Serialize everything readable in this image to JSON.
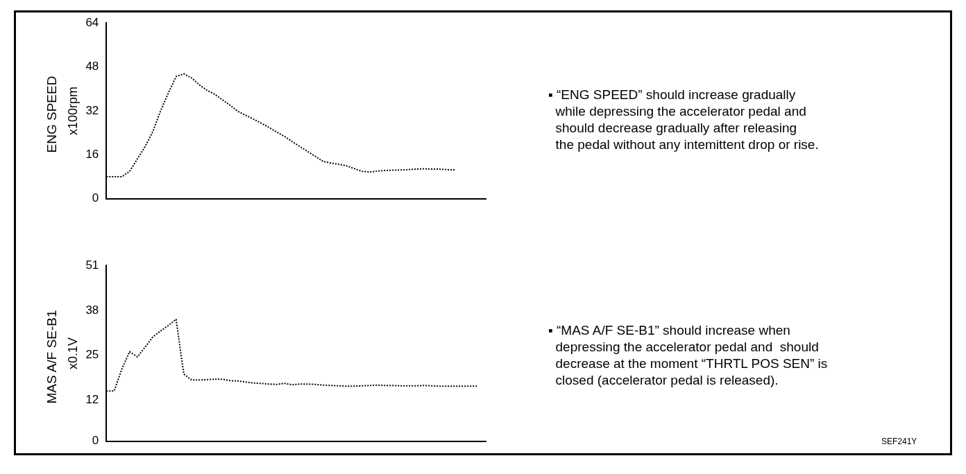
{
  "chart_data": [
    {
      "type": "line",
      "title": "ENG SPEED",
      "ylabel": "x100rpm",
      "categories": [
        null,
        null,
        null,
        null,
        null,
        null,
        null,
        null,
        null,
        null,
        null,
        null,
        null,
        null,
        null,
        null,
        null,
        null,
        null,
        null,
        null,
        null,
        null,
        null,
        null,
        null,
        null,
        null,
        null,
        null,
        null,
        null,
        null,
        null,
        null,
        null,
        null,
        null,
        null,
        null,
        null,
        null,
        null,
        null,
        null,
        null,
        null,
        null,
        null,
        null
      ],
      "series": [
        {
          "color": "#000000",
          "values": [
            8,
            8,
            8,
            10,
            14.5,
            19,
            24.5,
            32,
            38.5,
            44.5,
            45.5,
            44,
            41.5,
            39.5,
            38,
            36,
            34,
            31.8,
            30.4,
            29,
            27.5,
            26,
            24.3,
            22.7,
            20.8,
            19,
            17.2,
            15.4,
            13.6,
            13,
            12.6,
            12,
            11,
            10,
            9.7,
            10.1,
            10.3,
            10.4,
            10.5,
            10.6,
            10.8,
            10.9,
            10.8,
            10.8,
            10.6,
            10.5,
            null,
            null,
            null,
            null
          ]
        }
      ],
      "ylim": [
        0,
        64
      ],
      "yticks": [
        0,
        16,
        32,
        48,
        64
      ],
      "grid": false,
      "legend": false,
      "tick_labels": "y",
      "marker": "none",
      "line_style": "dotted",
      "annotations": [
        "▪ “ENG SPEED” should increase gradually\n  while depressing the accelerator pedal and\n  should decrease gradually after releasing\n  the pedal without any intemittent drop or rise."
      ]
    },
    {
      "type": "line",
      "title": "MAS A/F SE-B1",
      "ylabel": "x0.1V",
      "categories": [
        null,
        null,
        null,
        null,
        null,
        null,
        null,
        null,
        null,
        null,
        null,
        null,
        null,
        null,
        null,
        null,
        null,
        null,
        null,
        null,
        null,
        null,
        null,
        null,
        null,
        null,
        null,
        null,
        null,
        null,
        null,
        null,
        null,
        null,
        null,
        null,
        null,
        null,
        null,
        null,
        null,
        null,
        null,
        null,
        null,
        null,
        null,
        null,
        null,
        null
      ],
      "series": [
        {
          "color": "#000000",
          "values": [
            14.6,
            14.6,
            21,
            26,
            24.5,
            27.3,
            30.3,
            32,
            33.6,
            35.4,
            19.5,
            17.8,
            17.8,
            17.9,
            18,
            18,
            17.6,
            17.5,
            17.2,
            16.9,
            16.8,
            16.6,
            16.5,
            16.8,
            16.4,
            16.6,
            16.6,
            16.5,
            16.3,
            16.2,
            16.1,
            16,
            16,
            16.1,
            16.2,
            16.3,
            16.2,
            16.2,
            16.1,
            16.1,
            16.1,
            16.2,
            16.1,
            16,
            16,
            16,
            16,
            16,
            16,
            null
          ]
        }
      ],
      "ylim": [
        0,
        51
      ],
      "yticks": [
        0,
        12,
        25,
        38,
        51
      ],
      "grid": false,
      "legend": false,
      "tick_labels": "y",
      "marker": "none",
      "line_style": "dotted",
      "annotations": [
        "▪ “MAS A/F SE-B1” should increase when\n  depressing the accelerator pedal and  should\n  decrease at the moment “THRTL POS SEN” is\n  closed (accelerator pedal is released).",
        "SEF241Y"
      ]
    }
  ]
}
